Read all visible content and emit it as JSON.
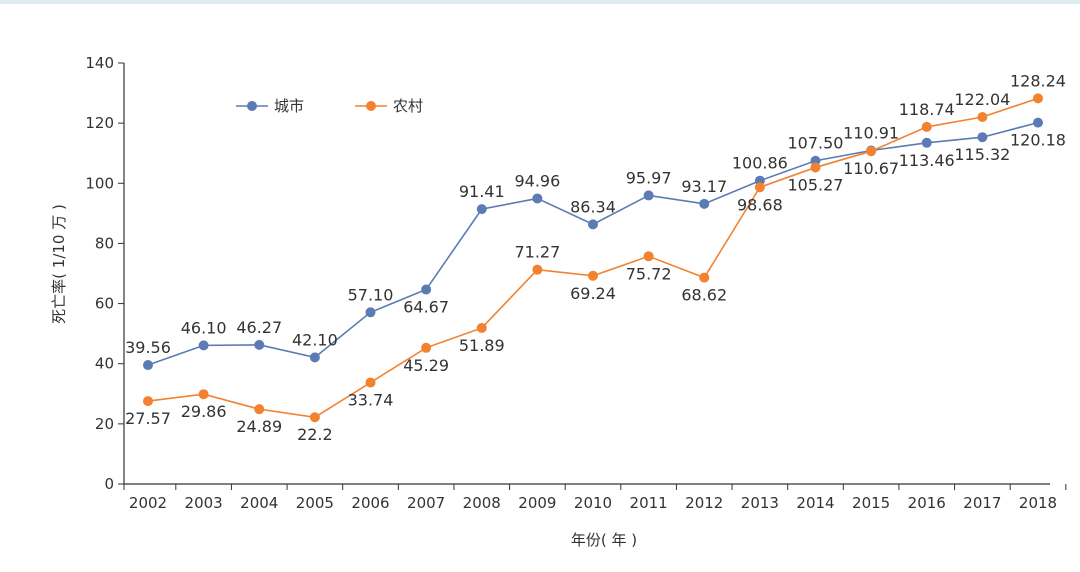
{
  "chart_data": {
    "type": "line",
    "title": "",
    "xlabel": "年份( 年 )",
    "ylabel": "死亡率( 1/10 万 )",
    "ylim": [
      0,
      140
    ],
    "yticks": [
      "0",
      "20",
      "40",
      "60",
      "80",
      "100",
      "120",
      "140"
    ],
    "categories": [
      "2002",
      "2003",
      "2004",
      "2005",
      "2006",
      "2007",
      "2008",
      "2009",
      "2010",
      "2011",
      "2012",
      "2013",
      "2014",
      "2015",
      "2016",
      "2017",
      "2018"
    ],
    "grid": false,
    "legend_position": "top-left",
    "series": [
      {
        "name": "城市",
        "color": "#5b7bb4",
        "values": [
          39.56,
          46.1,
          46.27,
          42.1,
          57.1,
          64.67,
          91.41,
          94.96,
          86.34,
          95.97,
          93.17,
          100.86,
          107.5,
          110.91,
          113.46,
          115.32,
          120.18
        ],
        "labels": [
          "39.56",
          "46.10",
          "46.27",
          "42.10",
          "57.10",
          "64.67",
          "91.41",
          "94.96",
          "86.34",
          "95.97",
          "93.17",
          "100.86",
          "107.50",
          "110.91",
          "113.46",
          "115.32",
          "120.18"
        ]
      },
      {
        "name": "农村",
        "color": "#f28230",
        "values": [
          27.57,
          29.86,
          24.89,
          22.2,
          33.74,
          45.29,
          51.89,
          71.27,
          69.24,
          75.72,
          68.62,
          98.68,
          105.27,
          110.67,
          118.74,
          122.04,
          128.24
        ],
        "labels": [
          "27.57",
          "29.86",
          "24.89",
          "22.2",
          "33.74",
          "45.29",
          "51.89",
          "71.27",
          "69.24",
          "75.72",
          "68.62",
          "98.68",
          "105.27",
          "110.67",
          "118.74",
          "122.04",
          "128.24"
        ]
      }
    ]
  }
}
